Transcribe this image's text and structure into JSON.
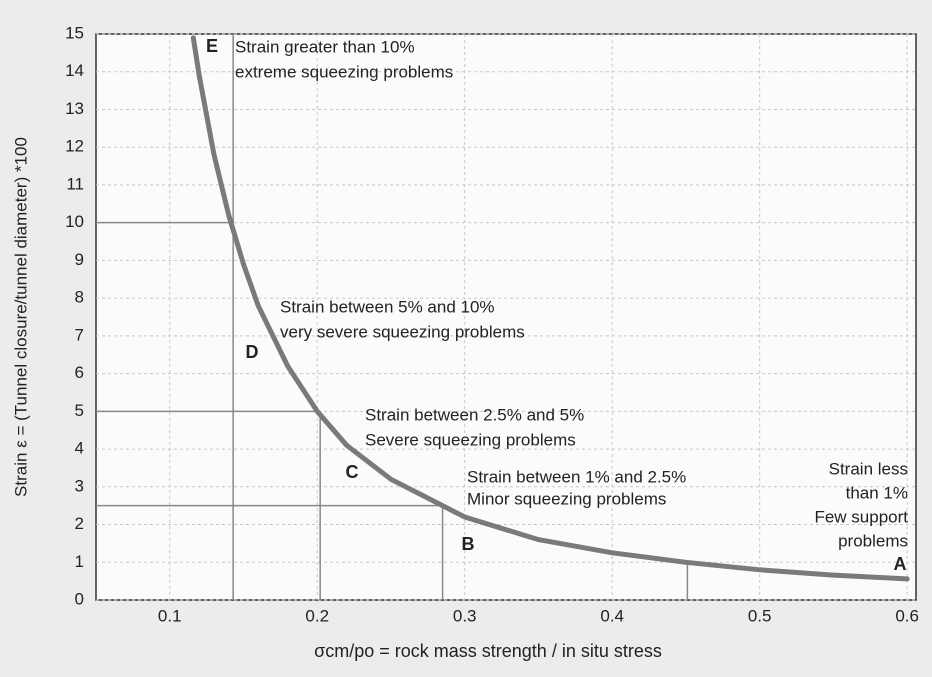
{
  "chart_data": {
    "type": "line",
    "xlabel": "σcm/po = rock mass strength / in situ stress",
    "ylabel": "Strain ε = (Tunnel closure/tunnel diameter) *100",
    "x": [
      0.116,
      0.12,
      0.13,
      0.14,
      0.15,
      0.16,
      0.18,
      0.2,
      0.22,
      0.25,
      0.28,
      0.3,
      0.35,
      0.4,
      0.45,
      0.5,
      0.55,
      0.6
    ],
    "series": [
      {
        "color": "#7a7a7a",
        "values": [
          14.9,
          13.9,
          11.8,
          10.2,
          8.9,
          7.8,
          6.2,
          5.0,
          4.1,
          3.2,
          2.6,
          2.2,
          1.6,
          1.25,
          1.0,
          0.8,
          0.66,
          0.56
        ]
      }
    ],
    "xlim": [
      0.05,
      0.606
    ],
    "ylim": [
      0,
      15
    ],
    "xticks": [
      0.1,
      0.2,
      0.3,
      0.4,
      0.5,
      0.6
    ],
    "yticks": [
      0,
      1,
      2,
      3,
      4,
      5,
      6,
      7,
      8,
      9,
      10,
      11,
      12,
      13,
      14,
      15
    ],
    "grid": true,
    "vlines": [
      {
        "x": 0.143,
        "y": 15
      },
      {
        "x": 0.202,
        "y": 5
      },
      {
        "x": 0.285,
        "y": 2.5
      },
      {
        "x": 0.451,
        "y": 1.0
      }
    ],
    "hlines": [
      {
        "x": 0.143,
        "y": 10
      },
      {
        "x": 0.202,
        "y": 5
      },
      {
        "x": 0.285,
        "y": 2.5
      }
    ],
    "annotations": [
      [
        "Strain greater than 10%",
        "extreme squeezing problems"
      ],
      [
        "Strain between 5% and 10%",
        "very severe squeezing problems"
      ],
      [
        "Strain between 2.5% and 5%",
        "Severe squeezing problems"
      ],
      [
        "Strain between 1% and 2.5%",
        "Minor squeezing problems"
      ],
      [
        "Strain less",
        "than 1%",
        "Few support",
        "problems"
      ]
    ],
    "zones": [
      "E",
      "D",
      "C",
      "B",
      "A"
    ]
  }
}
